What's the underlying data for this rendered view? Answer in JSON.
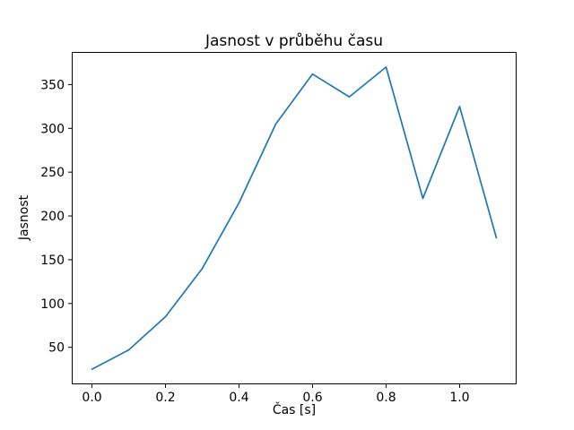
{
  "figure": {
    "background": "#ffffff",
    "frame_color": "#000000"
  },
  "chart_data": {
    "type": "line",
    "title": "Jasnost v průběhu času",
    "xlabel": "Čas [s]",
    "ylabel": "Jasnost",
    "x": [
      0.0,
      0.1,
      0.2,
      0.3,
      0.4,
      0.5,
      0.6,
      0.7,
      0.8,
      0.9,
      1.0,
      1.1
    ],
    "y": [
      25,
      47,
      85,
      140,
      215,
      305,
      362,
      336,
      370,
      220,
      325,
      175
    ],
    "series_name": "Jasnost",
    "line_color": "#1f77b4",
    "line_width": 1.7,
    "xlim": [
      -0.055,
      1.155
    ],
    "ylim": [
      7.75,
      387.25
    ],
    "xticks": [
      0.0,
      0.2,
      0.4,
      0.6,
      0.8,
      1.0
    ],
    "xtick_labels": [
      "0.0",
      "0.2",
      "0.4",
      "0.6",
      "0.8",
      "1.0"
    ],
    "yticks": [
      50,
      100,
      150,
      200,
      250,
      300,
      350
    ],
    "ytick_labels": [
      "50",
      "100",
      "150",
      "200",
      "250",
      "300",
      "350"
    ],
    "grid": false,
    "legend": null
  }
}
